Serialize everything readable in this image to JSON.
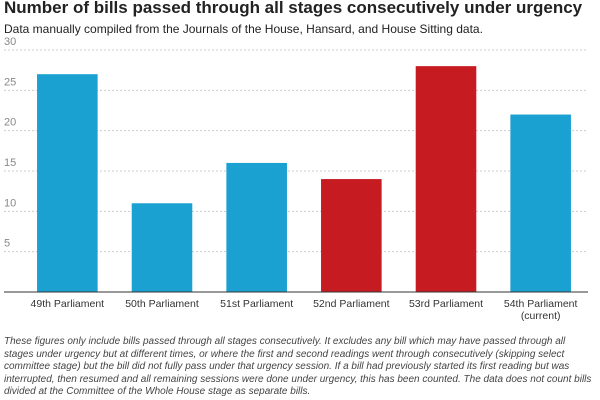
{
  "chart_data": {
    "type": "bar",
    "title": "Number of bills passed through all stages consecutively under urgency",
    "subtitle": "Data manually compiled from the Journals of the House, Hansard, and House Sitting data.",
    "categories": [
      "49th Parliament",
      "50th Parliament",
      "51st Parliament",
      "52nd Parliament",
      "53rd Parliament",
      "54th Parliament (current)"
    ],
    "values": [
      27,
      11,
      16,
      14,
      28,
      22
    ],
    "colors": [
      "#1ba1d1",
      "#1ba1d1",
      "#1ba1d1",
      "#c61c21",
      "#c61c21",
      "#1ba1d1"
    ],
    "ylim": [
      0,
      30
    ],
    "yticks": [
      5,
      10,
      15,
      20,
      25,
      30
    ],
    "grid": true,
    "note": "These figures only include bills passed through all stages consecutively. It excludes any bill which may have passed through all stages under urgency but at different times, or where the first and second readings went through consecutively (skipping select committee stage) but the bill did not fully pass under that urgency session. If a bill had previously started its first reading but was interrupted, then resumed and all remaining sessions were done under urgency, this has been counted. The data does not count bills divided at the Committee of the Whole House stage as separate bills."
  }
}
